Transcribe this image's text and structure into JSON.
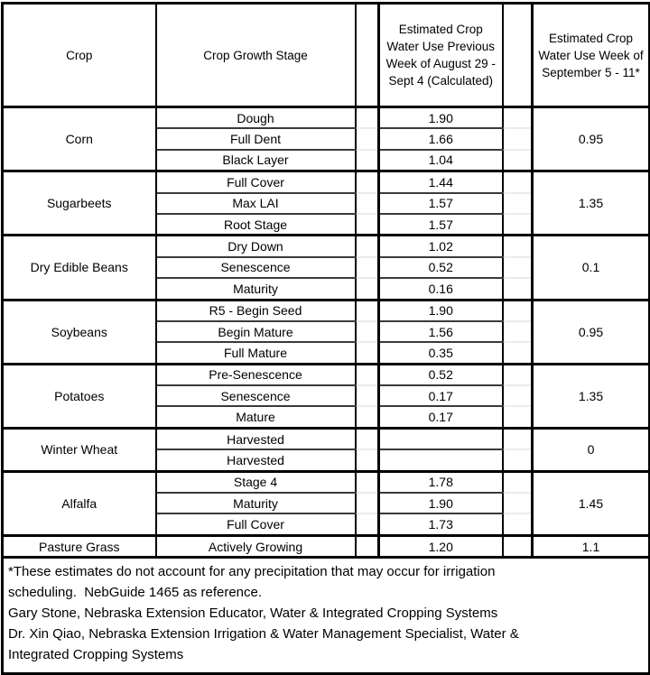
{
  "table": {
    "headers": {
      "crop": "Crop",
      "stage": "Crop Growth Stage",
      "calc": "Estimated Crop Water Use Previous Week of August 29 - Sept 4 (Calculated)",
      "week": "Estimated Crop Water Use Week of September 5 - 11*"
    },
    "groups": [
      {
        "crop": "Corn",
        "week_value": "0.95",
        "rows": [
          {
            "stage": "Dough",
            "calc": "1.90"
          },
          {
            "stage": "Full Dent",
            "calc": "1.66"
          },
          {
            "stage": "Black Layer",
            "calc": "1.04"
          }
        ]
      },
      {
        "crop": "Sugarbeets",
        "week_value": "1.35",
        "rows": [
          {
            "stage": "Full Cover",
            "calc": "1.44"
          },
          {
            "stage": "Max LAI",
            "calc": "1.57"
          },
          {
            "stage": "Root Stage",
            "calc": "1.57"
          }
        ]
      },
      {
        "crop": "Dry Edible Beans",
        "week_value": "0.1",
        "rows": [
          {
            "stage": "Dry Down",
            "calc": "1.02"
          },
          {
            "stage": "Senescence",
            "calc": "0.52"
          },
          {
            "stage": "Maturity",
            "calc": "0.16"
          }
        ]
      },
      {
        "crop": "Soybeans",
        "week_value": "0.95",
        "rows": [
          {
            "stage": "R5 - Begin Seed",
            "calc": "1.90"
          },
          {
            "stage": "Begin Mature",
            "calc": "1.56"
          },
          {
            "stage": "Full Mature",
            "calc": "0.35"
          }
        ]
      },
      {
        "crop": "Potatoes",
        "week_value": "1.35",
        "rows": [
          {
            "stage": "Pre-Senescence",
            "calc": "0.52"
          },
          {
            "stage": "Senescence",
            "calc": "0.17"
          },
          {
            "stage": "Mature",
            "calc": "0.17"
          }
        ]
      },
      {
        "crop": "Winter Wheat",
        "week_value": "0",
        "rows": [
          {
            "stage": "Harvested",
            "calc": ""
          },
          {
            "stage": "Harvested",
            "calc": ""
          }
        ]
      },
      {
        "crop": "Alfalfa",
        "week_value": "1.45",
        "rows": [
          {
            "stage": "Stage 4",
            "calc": "1.78"
          },
          {
            "stage": "Maturity",
            "calc": "1.90"
          },
          {
            "stage": "Full Cover",
            "calc": "1.73"
          }
        ]
      },
      {
        "crop": "Pasture Grass",
        "week_value": "1.1",
        "rows": [
          {
            "stage": "Actively Growing",
            "calc": "1.20"
          }
        ]
      }
    ],
    "footnote_lines": [
      "*These estimates do not account for any precipitation that may occur for irrigation",
      "scheduling.  NebGuide 1465 as reference.",
      "Gary Stone, Nebraska Extension Educator, Water & Integrated Cropping Systems",
      "Dr. Xin Qiao, Nebraska Extension Irrigation & Water Management Specialist, Water &",
      "Integrated Cropping Systems"
    ],
    "colors": {
      "border": "#000000",
      "inner_separator": "#3a3a3a",
      "spacer_gridline": "#ebebeb",
      "background": "#ffffff",
      "text": "#000000"
    }
  }
}
